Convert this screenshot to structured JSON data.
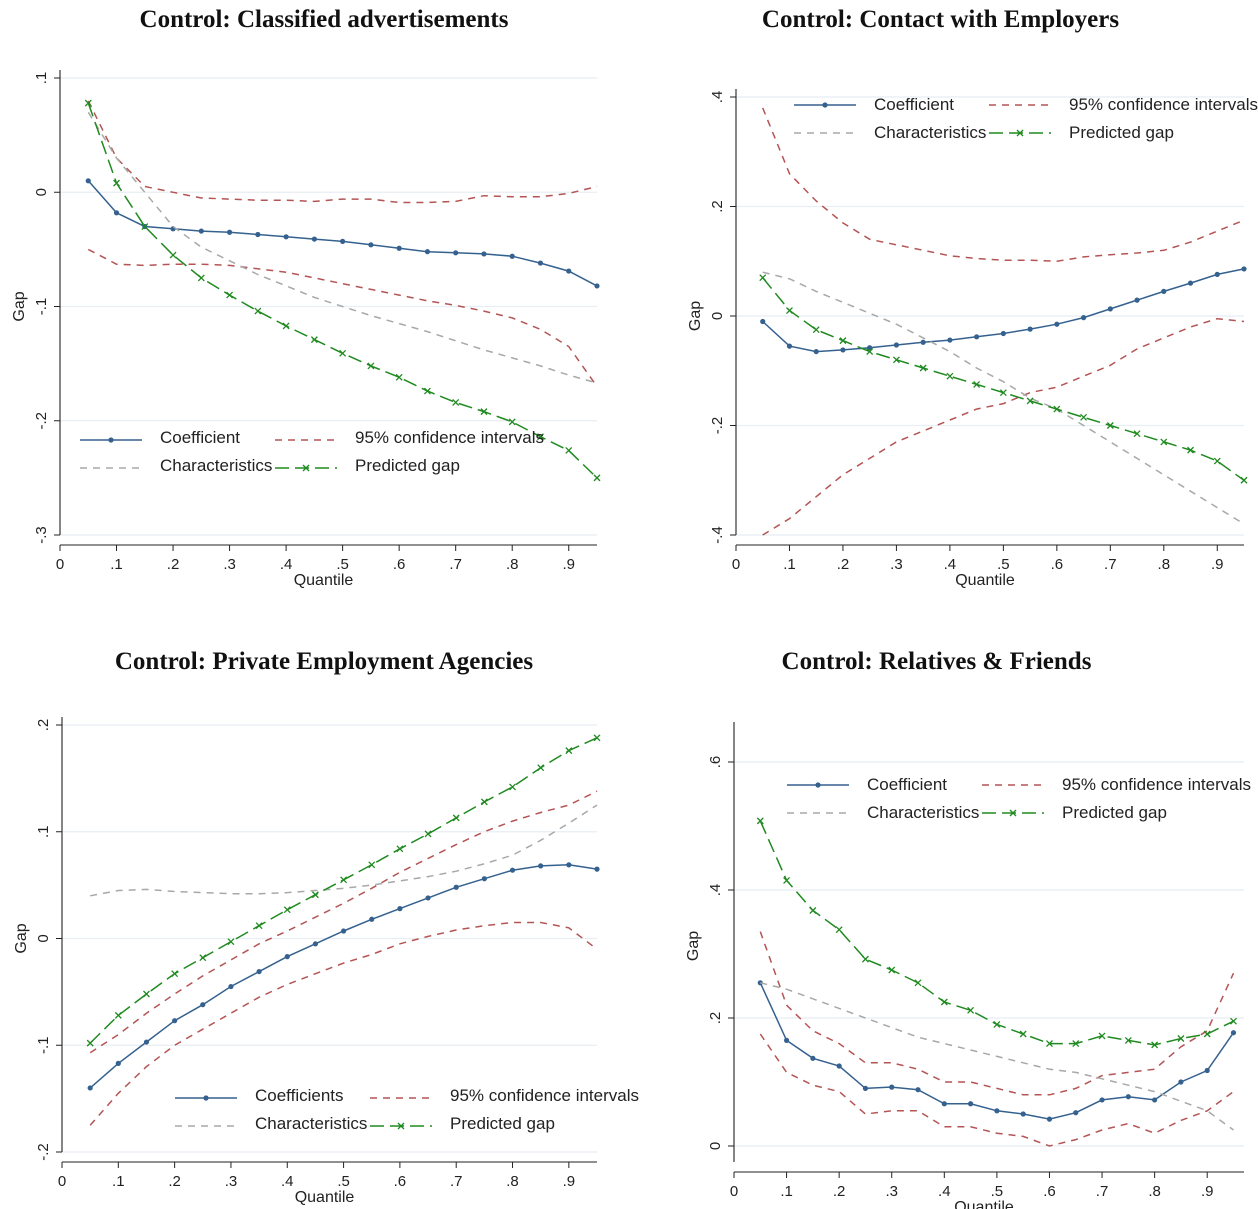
{
  "colors": {
    "coefficient": "#35618f",
    "ci": "#b45454",
    "characteristics": "#a8a8a8",
    "predicted": "#1f8a1f",
    "grid": "#e8eef3",
    "axis": "#222222"
  },
  "chart_data": [
    {
      "type": "line",
      "title": "Control: Classified advertisements",
      "xlabel": "Quantile",
      "ylabel": "Gap",
      "xlim": [
        0,
        0.95
      ],
      "ylim": [
        -0.3,
        0.1
      ],
      "xticks": [
        0,
        0.1,
        0.2,
        0.3,
        0.4,
        0.5,
        0.6,
        0.7,
        0.8,
        0.9
      ],
      "xtick_labels": [
        "0",
        ".1",
        ".2",
        ".3",
        ".4",
        ".5",
        ".6",
        ".7",
        ".8",
        ".9"
      ],
      "yticks": [
        -0.3,
        -0.2,
        -0.1,
        0,
        0.1
      ],
      "ytick_labels": [
        "-.3",
        "-.2",
        "-.1",
        "0",
        ".1"
      ],
      "grid": true,
      "legend_position": "bottom",
      "legend_labels": [
        "Coefficient",
        "95% confidence intervals",
        "Characteristics",
        "Predicted gap"
      ],
      "x": [
        0.05,
        0.1,
        0.15,
        0.2,
        0.25,
        0.3,
        0.35,
        0.4,
        0.45,
        0.5,
        0.55,
        0.6,
        0.65,
        0.7,
        0.75,
        0.8,
        0.85,
        0.9,
        0.95
      ],
      "series": [
        {
          "name": "Coefficient",
          "key": "coefficient",
          "style": "solid",
          "marker": "dot",
          "values": [
            0.01,
            -0.018,
            -0.03,
            -0.032,
            -0.034,
            -0.035,
            -0.037,
            -0.039,
            -0.041,
            -0.043,
            -0.046,
            -0.049,
            -0.052,
            -0.053,
            -0.054,
            -0.056,
            -0.062,
            -0.069,
            -0.082
          ]
        },
        {
          "name": "95% confidence intervals",
          "key": "ci",
          "style": "dash",
          "values": [
            0.08,
            0.03,
            0.005,
            0.0,
            -0.005,
            -0.006,
            -0.007,
            -0.007,
            -0.008,
            -0.006,
            -0.006,
            -0.009,
            -0.009,
            -0.008,
            -0.003,
            -0.004,
            -0.004,
            -0.001,
            0.005
          ]
        },
        {
          "name": "",
          "key": "ci",
          "style": "dash",
          "values": [
            -0.05,
            -0.063,
            -0.064,
            -0.063,
            -0.063,
            -0.064,
            -0.067,
            -0.07,
            -0.075,
            -0.08,
            -0.085,
            -0.09,
            -0.095,
            -0.099,
            -0.104,
            -0.11,
            -0.12,
            -0.135,
            -0.17
          ]
        },
        {
          "name": "Characteristics",
          "key": "characteristics",
          "style": "dash",
          "values": [
            0.07,
            0.03,
            0.0,
            -0.03,
            -0.048,
            -0.06,
            -0.072,
            -0.082,
            -0.092,
            -0.1,
            -0.108,
            -0.115,
            -0.122,
            -0.13,
            -0.138,
            -0.145,
            -0.152,
            -0.16,
            -0.167
          ]
        },
        {
          "name": "Predicted gap",
          "key": "predicted",
          "style": "longdash",
          "marker": "x",
          "values": [
            0.078,
            0.008,
            -0.03,
            -0.055,
            -0.075,
            -0.09,
            -0.104,
            -0.117,
            -0.129,
            -0.141,
            -0.152,
            -0.162,
            -0.174,
            -0.184,
            -0.192,
            -0.201,
            -0.214,
            -0.226,
            -0.25
          ]
        }
      ]
    },
    {
      "type": "line",
      "title": "Control: Contact with Employers",
      "xlabel": "Quantile",
      "ylabel": "Gap",
      "xlim": [
        0,
        0.95
      ],
      "ylim": [
        -0.4,
        0.4
      ],
      "xticks": [
        0,
        0.1,
        0.2,
        0.3,
        0.4,
        0.5,
        0.6,
        0.7,
        0.8,
        0.9
      ],
      "xtick_labels": [
        "0",
        ".1",
        ".2",
        ".3",
        ".4",
        ".5",
        ".6",
        ".7",
        ".8",
        ".9"
      ],
      "yticks": [
        -0.4,
        -0.2,
        0,
        0.2,
        0.4
      ],
      "ytick_labels": [
        "-.4",
        "-.2",
        "0",
        ".2",
        ".4"
      ],
      "grid": true,
      "legend_position": "top",
      "legend_labels": [
        "Coefficient",
        "95% confidence intervals",
        "Characteristics",
        "Predicted gap"
      ],
      "x": [
        0.05,
        0.1,
        0.15,
        0.2,
        0.25,
        0.3,
        0.35,
        0.4,
        0.45,
        0.5,
        0.55,
        0.6,
        0.65,
        0.7,
        0.75,
        0.8,
        0.85,
        0.9,
        0.95
      ],
      "series": [
        {
          "name": "Coefficient",
          "key": "coefficient",
          "style": "solid",
          "marker": "dot",
          "values": [
            -0.01,
            -0.055,
            -0.065,
            -0.062,
            -0.058,
            -0.053,
            -0.048,
            -0.044,
            -0.038,
            -0.032,
            -0.024,
            -0.015,
            -0.003,
            0.013,
            0.029,
            0.045,
            0.06,
            0.076,
            0.086
          ]
        },
        {
          "name": "95% confidence intervals",
          "key": "ci",
          "style": "dash",
          "values": [
            0.38,
            0.26,
            0.21,
            0.17,
            0.14,
            0.13,
            0.12,
            0.11,
            0.105,
            0.102,
            0.102,
            0.1,
            0.108,
            0.112,
            0.115,
            0.12,
            0.135,
            0.155,
            0.175
          ]
        },
        {
          "name": "",
          "key": "ci",
          "style": "dash",
          "values": [
            -0.4,
            -0.37,
            -0.33,
            -0.29,
            -0.26,
            -0.23,
            -0.21,
            -0.19,
            -0.17,
            -0.16,
            -0.14,
            -0.13,
            -0.11,
            -0.09,
            -0.06,
            -0.04,
            -0.02,
            -0.005,
            -0.01
          ]
        },
        {
          "name": "Characteristics",
          "key": "characteristics",
          "style": "dash",
          "values": [
            0.08,
            0.068,
            0.045,
            0.025,
            0.005,
            -0.015,
            -0.04,
            -0.065,
            -0.095,
            -0.12,
            -0.15,
            -0.17,
            -0.2,
            -0.23,
            -0.26,
            -0.29,
            -0.32,
            -0.35,
            -0.38
          ]
        },
        {
          "name": "Predicted gap",
          "key": "predicted",
          "style": "longdash",
          "marker": "x",
          "values": [
            0.07,
            0.01,
            -0.025,
            -0.045,
            -0.065,
            -0.08,
            -0.095,
            -0.11,
            -0.125,
            -0.14,
            -0.155,
            -0.17,
            -0.185,
            -0.2,
            -0.215,
            -0.23,
            -0.245,
            -0.265,
            -0.3
          ]
        }
      ]
    },
    {
      "type": "line",
      "title": "Control: Private Employment Agencies",
      "xlabel": "Quantile",
      "ylabel": "Gap",
      "xlim": [
        0,
        0.95
      ],
      "ylim": [
        -0.2,
        0.2
      ],
      "xticks": [
        0,
        0.1,
        0.2,
        0.3,
        0.4,
        0.5,
        0.6,
        0.7,
        0.8,
        0.9
      ],
      "xtick_labels": [
        "0",
        ".1",
        ".2",
        ".3",
        ".4",
        ".5",
        ".6",
        ".7",
        ".8",
        ".9"
      ],
      "yticks": [
        -0.2,
        -0.1,
        0,
        0.1,
        0.2
      ],
      "ytick_labels": [
        "-.2",
        "-.1",
        "0",
        ".1",
        ".2"
      ],
      "grid": true,
      "legend_position": "bottom",
      "legend_labels": [
        "Coefficients",
        "95% confidence intervals",
        "Characteristics",
        "Predicted gap"
      ],
      "x": [
        0.05,
        0.1,
        0.15,
        0.2,
        0.25,
        0.3,
        0.35,
        0.4,
        0.45,
        0.5,
        0.55,
        0.6,
        0.65,
        0.7,
        0.75,
        0.8,
        0.85,
        0.9,
        0.95
      ],
      "series": [
        {
          "name": "Coefficients",
          "key": "coefficient",
          "style": "solid",
          "marker": "dot",
          "values": [
            -0.14,
            -0.117,
            -0.097,
            -0.077,
            -0.062,
            -0.045,
            -0.031,
            -0.017,
            -0.005,
            0.007,
            0.018,
            0.028,
            0.038,
            0.048,
            0.056,
            0.064,
            0.068,
            0.069,
            0.065
          ]
        },
        {
          "name": "95% confidence intervals",
          "key": "ci",
          "style": "dash",
          "values": [
            -0.107,
            -0.09,
            -0.07,
            -0.052,
            -0.035,
            -0.02,
            -0.005,
            0.007,
            0.02,
            0.033,
            0.047,
            0.062,
            0.075,
            0.088,
            0.1,
            0.11,
            0.118,
            0.125,
            0.138
          ]
        },
        {
          "name": "",
          "key": "ci",
          "style": "dash",
          "values": [
            -0.175,
            -0.145,
            -0.12,
            -0.1,
            -0.085,
            -0.07,
            -0.055,
            -0.043,
            -0.033,
            -0.023,
            -0.015,
            -0.005,
            0.002,
            0.008,
            0.012,
            0.015,
            0.015,
            0.01,
            -0.01
          ]
        },
        {
          "name": "Characteristics",
          "key": "characteristics",
          "style": "dash",
          "values": [
            0.04,
            0.045,
            0.046,
            0.044,
            0.043,
            0.042,
            0.042,
            0.043,
            0.045,
            0.047,
            0.05,
            0.054,
            0.058,
            0.063,
            0.07,
            0.078,
            0.092,
            0.108,
            0.125
          ]
        },
        {
          "name": "Predicted gap",
          "key": "predicted",
          "style": "longdash",
          "marker": "x",
          "values": [
            -0.098,
            -0.072,
            -0.052,
            -0.033,
            -0.018,
            -0.003,
            0.012,
            0.027,
            0.041,
            0.055,
            0.069,
            0.084,
            0.098,
            0.113,
            0.128,
            0.142,
            0.16,
            0.176,
            0.188
          ]
        }
      ]
    },
    {
      "type": "line",
      "title": "Control: Relatives & Friends",
      "xlabel": "Quantile",
      "ylabel": "Gap",
      "xlim": [
        0,
        0.97
      ],
      "ylim": [
        -0.025,
        0.65
      ],
      "xticks": [
        0,
        0.1,
        0.2,
        0.3,
        0.4,
        0.5,
        0.6,
        0.7,
        0.8,
        0.9
      ],
      "xtick_labels": [
        "0",
        ".1",
        ".2",
        ".3",
        ".4",
        ".5",
        ".6",
        ".7",
        ".8",
        ".9"
      ],
      "yticks": [
        0,
        0.2,
        0.4,
        0.6
      ],
      "ytick_labels": [
        "0",
        ".2",
        ".4",
        ".6"
      ],
      "grid": true,
      "legend_position": "top",
      "legend_labels": [
        "Coefficient",
        "95% confidence intervals",
        "Characteristics",
        "Predicted gap"
      ],
      "x": [
        0.05,
        0.1,
        0.15,
        0.2,
        0.25,
        0.3,
        0.35,
        0.4,
        0.45,
        0.5,
        0.55,
        0.6,
        0.65,
        0.7,
        0.75,
        0.8,
        0.85,
        0.9,
        0.95
      ],
      "series": [
        {
          "name": "Coefficient",
          "key": "coefficient",
          "style": "solid",
          "marker": "dot",
          "values": [
            0.255,
            0.165,
            0.137,
            0.125,
            0.09,
            0.092,
            0.088,
            0.066,
            0.066,
            0.055,
            0.05,
            0.042,
            0.052,
            0.072,
            0.077,
            0.072,
            0.1,
            0.118,
            0.177
          ]
        },
        {
          "name": "95% confidence intervals",
          "key": "ci",
          "style": "dash",
          "values": [
            0.335,
            0.22,
            0.18,
            0.16,
            0.13,
            0.13,
            0.12,
            0.1,
            0.1,
            0.09,
            0.08,
            0.08,
            0.09,
            0.11,
            0.115,
            0.12,
            0.155,
            0.18,
            0.27
          ]
        },
        {
          "name": "",
          "key": "ci",
          "style": "dash",
          "values": [
            0.175,
            0.115,
            0.095,
            0.085,
            0.05,
            0.055,
            0.055,
            0.03,
            0.03,
            0.02,
            0.015,
            0.0,
            0.01,
            0.025,
            0.035,
            0.02,
            0.04,
            0.055,
            0.085
          ]
        },
        {
          "name": "Characteristics",
          "key": "characteristics",
          "style": "dash",
          "values": [
            0.255,
            0.245,
            0.23,
            0.215,
            0.2,
            0.185,
            0.17,
            0.16,
            0.15,
            0.14,
            0.13,
            0.12,
            0.115,
            0.105,
            0.095,
            0.085,
            0.07,
            0.055,
            0.025
          ]
        },
        {
          "name": "Predicted gap",
          "key": "predicted",
          "style": "longdash",
          "marker": "x",
          "values": [
            0.508,
            0.415,
            0.368,
            0.338,
            0.292,
            0.275,
            0.255,
            0.225,
            0.212,
            0.19,
            0.175,
            0.16,
            0.16,
            0.172,
            0.165,
            0.158,
            0.168,
            0.175,
            0.195
          ]
        }
      ]
    }
  ]
}
